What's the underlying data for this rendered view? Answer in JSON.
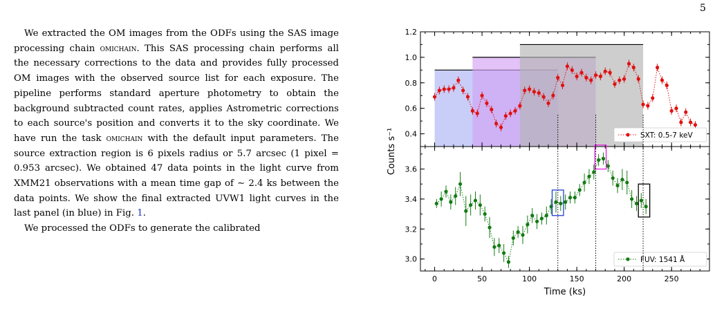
{
  "page_number": "5",
  "paragraph1": {
    "before_sc1": "We extracted the OM images from the ODFs using the SAS image processing chain ",
    "sc1": "omichain",
    "after_sc1": ". This SAS processing chain performs all the necessary corrections to the data and provides fully processed OM images with the observed source list for each exposure. The pipeline performs standard aperture photometry to obtain the background subtracted count rates, applies Astrometric corrections to each source's position and converts it to the sky coordinate. We have run the task ",
    "sc2": "omichain",
    "after_sc2": " with the default input parameters. The source extraction region is 6 pixels radius or 5.7 arcsec (1 pixel = 0.953 arcsec). We obtained 47 data points in the light curve from XMM21 observations with a mean time gap of ∼ 2.4 ks between the data points. We show the final extracted UVW1 light curves in the last panel (in blue) in Fig. ",
    "fig_ref": "1",
    "end": "."
  },
  "paragraph2": "We processed the ODFs to generate the calibrated",
  "colors": {
    "sxt": "#e01010",
    "fuv": "#127a12",
    "band_blue": "#aab4f5",
    "band_violet": "#d2a2f2",
    "band_gray": "#b4b4b4",
    "box_blue": "#1f3fd4",
    "box_magenta": "#e020e0",
    "box_black": "#000000",
    "fig_ref": "#1a33b3"
  },
  "chart_data": {
    "type": "line",
    "xlabel": "Time (ks)",
    "ylabel": "Counts s⁻¹",
    "xlim": [
      -15,
      290
    ],
    "x_ticks": [
      "0",
      "50",
      "100",
      "150",
      "200",
      "250"
    ],
    "top_panel": {
      "ylim": [
        0.3,
        1.2
      ],
      "y_ticks": [
        "0.4",
        "0.6",
        "0.8",
        "1.0",
        "1.2"
      ],
      "legend": "SXT: 0.5-7 keV",
      "legend_position": "lower-right",
      "series": [
        {
          "name": "SXT: 0.5-7 keV",
          "x": [
            0,
            5,
            10,
            15,
            20,
            25,
            30,
            35,
            40,
            45,
            50,
            55,
            60,
            65,
            70,
            75,
            80,
            85,
            90,
            95,
            100,
            105,
            110,
            115,
            120,
            125,
            130,
            135,
            140,
            145,
            150,
            155,
            160,
            165,
            170,
            175,
            180,
            185,
            190,
            195,
            200,
            205,
            210,
            215,
            220,
            225,
            230,
            235,
            240,
            245,
            250,
            255,
            260,
            265,
            270,
            275
          ],
          "y": [
            0.69,
            0.74,
            0.75,
            0.75,
            0.76,
            0.82,
            0.74,
            0.69,
            0.58,
            0.56,
            0.7,
            0.64,
            0.59,
            0.48,
            0.45,
            0.54,
            0.56,
            0.58,
            0.62,
            0.74,
            0.75,
            0.73,
            0.72,
            0.69,
            0.64,
            0.7,
            0.84,
            0.78,
            0.93,
            0.9,
            0.85,
            0.88,
            0.84,
            0.82,
            0.86,
            0.85,
            0.89,
            0.88,
            0.79,
            0.82,
            0.83,
            0.95,
            0.92,
            0.83,
            0.63,
            0.62,
            0.68,
            0.92,
            0.82,
            0.78,
            0.58,
            0.6,
            0.49,
            0.57,
            0.49,
            0.47
          ],
          "err": [
            0.03,
            0.03,
            0.03,
            0.03,
            0.03,
            0.03,
            0.03,
            0.03,
            0.03,
            0.03,
            0.03,
            0.03,
            0.03,
            0.03,
            0.03,
            0.03,
            0.03,
            0.03,
            0.03,
            0.03,
            0.03,
            0.03,
            0.03,
            0.03,
            0.03,
            0.03,
            0.03,
            0.03,
            0.03,
            0.03,
            0.03,
            0.03,
            0.03,
            0.03,
            0.03,
            0.03,
            0.03,
            0.03,
            0.03,
            0.03,
            0.03,
            0.03,
            0.03,
            0.03,
            0.03,
            0.03,
            0.03,
            0.03,
            0.03,
            0.03,
            0.03,
            0.03,
            0.03,
            0.03,
            0.03,
            0.03
          ]
        }
      ],
      "shaded_intervals": [
        {
          "x": [
            0,
            130
          ],
          "level": 0.9,
          "color": "#aab4f5"
        },
        {
          "x": [
            40,
            170
          ],
          "level": 1.0,
          "color": "#d2a2f2"
        },
        {
          "x": [
            90,
            220
          ],
          "level": 1.1,
          "color": "#b4b4b4"
        }
      ]
    },
    "bottom_panel": {
      "ylim": [
        2.92,
        3.75
      ],
      "y_ticks": [
        "3.0",
        "3.2",
        "3.4",
        "3.6"
      ],
      "legend": "FUV: 1541 Å",
      "legend_position": "lower-right",
      "series": [
        {
          "name": "FUV: 1541 Å",
          "x": [
            2,
            7,
            12,
            17,
            22,
            27,
            33,
            38,
            43,
            48,
            53,
            58,
            63,
            68,
            73,
            78,
            83,
            88,
            93,
            98,
            103,
            108,
            113,
            118,
            123,
            128,
            133,
            138,
            143,
            148,
            153,
            158,
            163,
            168,
            173,
            178,
            183,
            188,
            193,
            198,
            203,
            208,
            213,
            218,
            223
          ],
          "y": [
            3.37,
            3.4,
            3.45,
            3.38,
            3.42,
            3.5,
            3.32,
            3.36,
            3.39,
            3.36,
            3.3,
            3.21,
            3.08,
            3.09,
            3.04,
            2.98,
            3.14,
            3.18,
            3.16,
            3.23,
            3.29,
            3.25,
            3.27,
            3.29,
            3.35,
            3.38,
            3.37,
            3.38,
            3.41,
            3.41,
            3.46,
            3.51,
            3.55,
            3.58,
            3.66,
            3.67,
            3.62,
            3.54,
            3.49,
            3.53,
            3.51,
            3.4,
            3.37,
            3.39,
            3.35
          ],
          "err": [
            0.03,
            0.05,
            0.04,
            0.05,
            0.06,
            0.08,
            0.1,
            0.07,
            0.06,
            0.07,
            0.05,
            0.07,
            0.06,
            0.05,
            0.06,
            0.04,
            0.05,
            0.04,
            0.06,
            0.06,
            0.05,
            0.05,
            0.04,
            0.06,
            0.05,
            0.07,
            0.05,
            0.05,
            0.04,
            0.04,
            0.04,
            0.06,
            0.05,
            0.05,
            0.04,
            0.04,
            0.04,
            0.05,
            0.05,
            0.07,
            0.08,
            0.06,
            0.05,
            0.05,
            0.05
          ]
        }
      ],
      "boxes": [
        {
          "x": [
            124,
            136
          ],
          "y": [
            3.29,
            3.46
          ],
          "color": "#1f3fd4"
        },
        {
          "x": [
            169,
            181
          ],
          "y": [
            3.6,
            3.76
          ],
          "color": "#e020e0"
        },
        {
          "x": [
            215,
            227
          ],
          "y": [
            3.28,
            3.5
          ],
          "color": "#000000"
        }
      ]
    },
    "vertical_lines": [
      130,
      170,
      220
    ],
    "grid": false
  }
}
